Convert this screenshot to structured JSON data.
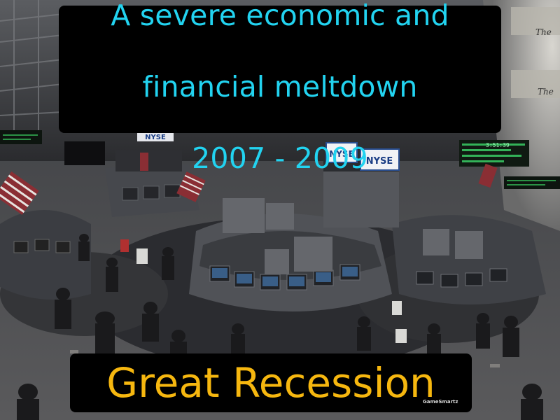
{
  "definition": {
    "line1": "A severe economic and",
    "line2": "financial meltdown",
    "line3": "2007 - 2009"
  },
  "term": "Great Recession",
  "watermark": "GameSmartz",
  "signs": {
    "nyse_left": "NYSE",
    "nyse_right": "NYSE",
    "ticker": "3:51:39"
  },
  "colors": {
    "definition_text": "#22d3f0",
    "term_text": "#f6b70f",
    "caption_background": "#000000"
  }
}
